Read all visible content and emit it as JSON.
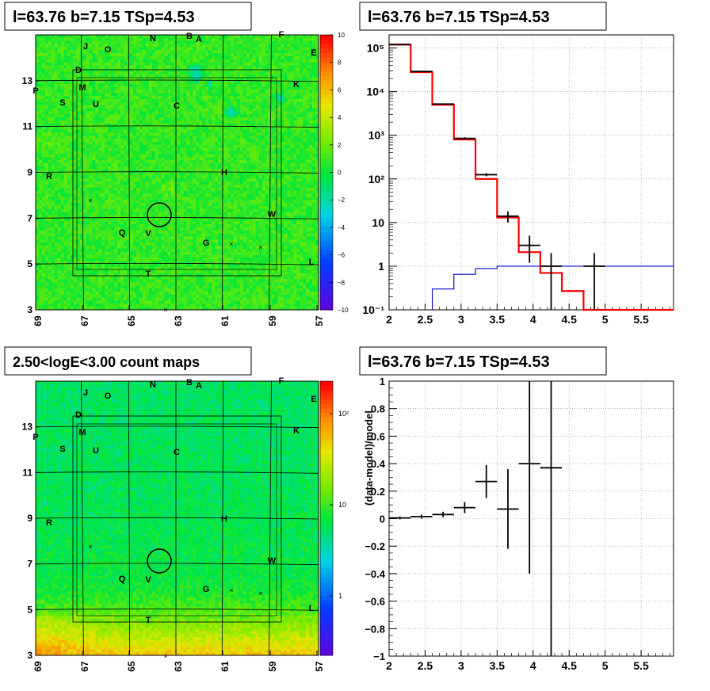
{
  "chart_data": [
    {
      "type": "heatmap",
      "title": "l=63.76 b=7.15 TSp=4.53",
      "x_ticks": [
        "69",
        "67",
        "65",
        "63",
        "61",
        "59",
        "57"
      ],
      "y_ticks": [
        "3",
        "5",
        "7",
        "9",
        "11",
        "13"
      ],
      "xlim": [
        69,
        57
      ],
      "ylim": [
        3,
        15
      ],
      "colorbar_ticks": [
        "10",
        "8",
        "6",
        "4",
        "2",
        "0",
        "−2",
        "−4",
        "−6",
        "−8",
        "−10"
      ],
      "colorbar_range": [
        -10,
        10
      ],
      "labels": [
        "J",
        "O",
        "N",
        "B",
        "A",
        "F",
        "E",
        "D",
        "M",
        "K",
        "P",
        "S",
        "U",
        "C",
        "R",
        "H",
        "W",
        "Q",
        "V",
        "G",
        "L",
        "T"
      ]
    },
    {
      "type": "line",
      "title": "l=63.76 b=7.15 TSp=4.53",
      "log_y": true,
      "xlim": [
        2,
        5.95
      ],
      "ylim": [
        0.1,
        200000
      ],
      "x_ticks": [
        "2",
        "2.5",
        "3",
        "3.5",
        "4",
        "4.5",
        "5",
        "5.5"
      ],
      "y_ticks": [
        "10⁻¹",
        "1",
        "10",
        "10²",
        "10³",
        "10⁴",
        "10⁵"
      ],
      "series": [
        {
          "color": "#ff0000",
          "edges": [
            2.0,
            2.3,
            2.6,
            2.9,
            3.2,
            3.5,
            3.8,
            4.1,
            4.4,
            4.7,
            5.95
          ],
          "values": [
            120000,
            28000,
            5000,
            800,
            100,
            13,
            2.1,
            0.7,
            0.27,
            0.1
          ]
        },
        {
          "color": "#0000cc",
          "edges": [
            2.6,
            2.9,
            3.2,
            3.5,
            5.95
          ],
          "values": [
            0.3,
            0.65,
            0.88,
            1.0
          ]
        }
      ],
      "data_points": [
        {
          "x": 2.15,
          "y": 120000,
          "xerr": 0.15,
          "ylo": 119000,
          "yhi": 121000
        },
        {
          "x": 2.45,
          "y": 29000,
          "xerr": 0.15,
          "ylo": 28500,
          "yhi": 29500
        },
        {
          "x": 2.75,
          "y": 5200,
          "xerr": 0.15,
          "ylo": 5050,
          "yhi": 5350
        },
        {
          "x": 3.05,
          "y": 850,
          "xerr": 0.15,
          "ylo": 800,
          "yhi": 900
        },
        {
          "x": 3.35,
          "y": 125,
          "xerr": 0.15,
          "ylo": 115,
          "yhi": 135
        },
        {
          "x": 3.65,
          "y": 14,
          "xerr": 0.15,
          "ylo": 10,
          "yhi": 18
        },
        {
          "x": 3.95,
          "y": 3,
          "xerr": 0.15,
          "ylo": 1.2,
          "yhi": 5
        },
        {
          "x": 4.25,
          "y": 1,
          "xerr": 0.15,
          "ylo": 0.1,
          "yhi": 2
        },
        {
          "x": 4.85,
          "y": 1,
          "xerr": 0.15,
          "ylo": 0.1,
          "yhi": 2
        }
      ]
    },
    {
      "type": "heatmap",
      "title": "2.50<logE<3.00 count maps",
      "x_ticks": [
        "69",
        "67",
        "65",
        "63",
        "61",
        "59",
        "57"
      ],
      "y_ticks": [
        "3",
        "5",
        "7",
        "9",
        "11",
        "13"
      ],
      "xlim": [
        69,
        57
      ],
      "ylim": [
        3,
        15
      ],
      "colorbar_ticks": [
        "10²",
        "10",
        "1"
      ],
      "colorbar_log": true,
      "labels": [
        "J",
        "O",
        "N",
        "B",
        "A",
        "F",
        "E",
        "D",
        "M",
        "K",
        "P",
        "S",
        "U",
        "C",
        "R",
        "H",
        "W",
        "Q",
        "V",
        "G",
        "L",
        "T"
      ]
    },
    {
      "type": "scatter",
      "title": "l=63.76 b=7.15 TSp=4.53",
      "xlim": [
        2,
        5.95
      ],
      "ylim": [
        -1,
        1
      ],
      "ylabel": "(data-model)/model",
      "x_ticks": [
        "2",
        "2.5",
        "3",
        "3.5",
        "4",
        "4.5",
        "5",
        "5.5"
      ],
      "y_ticks": [
        "−1",
        "−0.8",
        "−0.6",
        "−0.4",
        "−0.2",
        "0",
        "0.2",
        "0.4",
        "0.6",
        "0.8",
        "1"
      ],
      "points": [
        {
          "x": 2.15,
          "y": 0.005,
          "xerr": 0.15,
          "yerr": 0.01
        },
        {
          "x": 2.45,
          "y": 0.015,
          "xerr": 0.15,
          "yerr": 0.015
        },
        {
          "x": 2.75,
          "y": 0.03,
          "xerr": 0.15,
          "yerr": 0.02
        },
        {
          "x": 3.05,
          "y": 0.08,
          "xerr": 0.15,
          "yerr": 0.04
        },
        {
          "x": 3.35,
          "y": 0.27,
          "xerr": 0.15,
          "yerr": 0.12
        },
        {
          "x": 3.65,
          "y": 0.07,
          "xerr": 0.15,
          "yerr": 0.29
        },
        {
          "x": 3.95,
          "y": 0.4,
          "xerr": 0.15,
          "ylo": -0.4,
          "yhi": 1.0
        },
        {
          "x": 4.25,
          "y": 0.37,
          "xerr": 0.15,
          "ylo": -1.0,
          "yhi": 1.0
        }
      ]
    }
  ]
}
